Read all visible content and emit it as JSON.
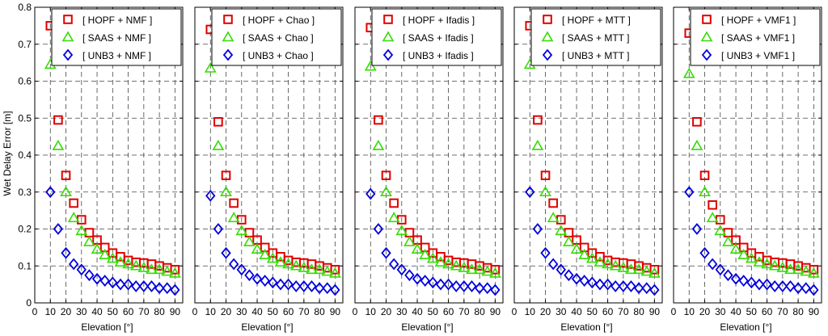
{
  "figure": {
    "ylabel": "Wet Delay Error [m]",
    "xlabel": "Elevation [°]"
  },
  "colors": {
    "hopf": "#e00000",
    "saas": "#33dd00",
    "unb3": "#0000dd",
    "grid": "#444444"
  },
  "chart_data": [
    {
      "type": "scatter",
      "xlabel": "Elevation [°]",
      "ylabel": "Wet Delay Error [m]",
      "xlim": [
        0,
        95
      ],
      "ylim": [
        0,
        0.8
      ],
      "xticks": [
        "0",
        "10",
        "20",
        "30",
        "40",
        "50",
        "60",
        "70",
        "80",
        "90"
      ],
      "yticks": [
        "0",
        "0.1",
        "0.2",
        "0.3",
        "0.4",
        "0.5",
        "0.6",
        "0.7",
        "0.8"
      ],
      "grid": true,
      "legend_position": "top-right",
      "series": [
        {
          "name": "[ HOPF + NMF ]",
          "marker": "square",
          "x": [
            10,
            15,
            20,
            25,
            30,
            35,
            40,
            45,
            50,
            55,
            60,
            65,
            70,
            75,
            80,
            85,
            90
          ],
          "y": [
            0.75,
            0.495,
            0.345,
            0.27,
            0.225,
            0.19,
            0.17,
            0.15,
            0.135,
            0.125,
            0.115,
            0.11,
            0.108,
            0.105,
            0.1,
            0.095,
            0.09
          ]
        },
        {
          "name": "[ SAAS + NMF ]",
          "marker": "triangle",
          "x": [
            10,
            15,
            20,
            25,
            30,
            35,
            40,
            45,
            50,
            55,
            60,
            65,
            70,
            75,
            80,
            85,
            90
          ],
          "y": [
            0.645,
            0.425,
            0.3,
            0.23,
            0.195,
            0.165,
            0.145,
            0.13,
            0.12,
            0.11,
            0.105,
            0.1,
            0.095,
            0.09,
            0.09,
            0.085,
            0.08
          ]
        },
        {
          "name": "[ UNB3 + NMF ]",
          "marker": "diamond",
          "x": [
            10,
            15,
            20,
            25,
            30,
            35,
            40,
            45,
            50,
            55,
            60,
            65,
            70,
            75,
            80,
            85,
            90
          ],
          "y": [
            0.3,
            0.2,
            0.135,
            0.105,
            0.09,
            0.075,
            0.065,
            0.06,
            0.055,
            0.05,
            0.05,
            0.045,
            0.045,
            0.045,
            0.04,
            0.04,
            0.035
          ]
        }
      ]
    },
    {
      "type": "scatter",
      "xlabel": "Elevation [°]",
      "xlim": [
        0,
        95
      ],
      "ylim": [
        0,
        0.8
      ],
      "xticks": [
        "0",
        "10",
        "20",
        "30",
        "40",
        "50",
        "60",
        "70",
        "80",
        "90"
      ],
      "grid": true,
      "legend_position": "top-right",
      "series": [
        {
          "name": "[ HOPF + Chao ]",
          "marker": "square",
          "x": [
            10,
            15,
            20,
            25,
            30,
            35,
            40,
            45,
            50,
            55,
            60,
            65,
            70,
            75,
            80,
            85,
            90
          ],
          "y": [
            0.74,
            0.49,
            0.345,
            0.27,
            0.225,
            0.19,
            0.17,
            0.15,
            0.135,
            0.125,
            0.115,
            0.11,
            0.108,
            0.105,
            0.1,
            0.095,
            0.09
          ]
        },
        {
          "name": "[ SAAS + Chao ]",
          "marker": "triangle",
          "x": [
            10,
            15,
            20,
            25,
            30,
            35,
            40,
            45,
            50,
            55,
            60,
            65,
            70,
            75,
            80,
            85,
            90
          ],
          "y": [
            0.635,
            0.425,
            0.3,
            0.23,
            0.195,
            0.165,
            0.145,
            0.13,
            0.12,
            0.11,
            0.105,
            0.1,
            0.095,
            0.09,
            0.09,
            0.085,
            0.08
          ]
        },
        {
          "name": "[ UNB3 + Chao ]",
          "marker": "diamond",
          "x": [
            10,
            15,
            20,
            25,
            30,
            35,
            40,
            45,
            50,
            55,
            60,
            65,
            70,
            75,
            80,
            85,
            90
          ],
          "y": [
            0.29,
            0.2,
            0.135,
            0.105,
            0.09,
            0.075,
            0.065,
            0.06,
            0.055,
            0.05,
            0.05,
            0.045,
            0.045,
            0.045,
            0.04,
            0.04,
            0.035
          ]
        }
      ]
    },
    {
      "type": "scatter",
      "xlabel": "Elevation [°]",
      "xlim": [
        0,
        95
      ],
      "ylim": [
        0,
        0.8
      ],
      "xticks": [
        "0",
        "10",
        "20",
        "30",
        "40",
        "50",
        "60",
        "70",
        "80",
        "90"
      ],
      "grid": true,
      "legend_position": "top-right",
      "series": [
        {
          "name": "[ HOPF + Ifadis ]",
          "marker": "square",
          "x": [
            10,
            15,
            20,
            25,
            30,
            35,
            40,
            45,
            50,
            55,
            60,
            65,
            70,
            75,
            80,
            85,
            90
          ],
          "y": [
            0.745,
            0.495,
            0.345,
            0.27,
            0.225,
            0.19,
            0.17,
            0.15,
            0.135,
            0.125,
            0.115,
            0.11,
            0.108,
            0.105,
            0.1,
            0.095,
            0.09
          ]
        },
        {
          "name": "[ SAAS + Ifadis ]",
          "marker": "triangle",
          "x": [
            10,
            15,
            20,
            25,
            30,
            35,
            40,
            45,
            50,
            55,
            60,
            65,
            70,
            75,
            80,
            85,
            90
          ],
          "y": [
            0.64,
            0.425,
            0.3,
            0.23,
            0.195,
            0.165,
            0.145,
            0.13,
            0.12,
            0.11,
            0.105,
            0.1,
            0.095,
            0.09,
            0.09,
            0.085,
            0.08
          ]
        },
        {
          "name": "[ UNB3 + Ifadis ]",
          "marker": "diamond",
          "x": [
            10,
            15,
            20,
            25,
            30,
            35,
            40,
            45,
            50,
            55,
            60,
            65,
            70,
            75,
            80,
            85,
            90
          ],
          "y": [
            0.295,
            0.2,
            0.135,
            0.105,
            0.09,
            0.075,
            0.065,
            0.06,
            0.055,
            0.05,
            0.05,
            0.045,
            0.045,
            0.045,
            0.04,
            0.04,
            0.035
          ]
        }
      ]
    },
    {
      "type": "scatter",
      "xlabel": "Elevation [°]",
      "xlim": [
        0,
        95
      ],
      "ylim": [
        0,
        0.8
      ],
      "xticks": [
        "0",
        "10",
        "20",
        "30",
        "40",
        "50",
        "60",
        "70",
        "80",
        "90"
      ],
      "grid": true,
      "legend_position": "top-right",
      "series": [
        {
          "name": "[ HOPF + MTT ]",
          "marker": "square",
          "x": [
            10,
            15,
            20,
            25,
            30,
            35,
            40,
            45,
            50,
            55,
            60,
            65,
            70,
            75,
            80,
            85,
            90
          ],
          "y": [
            0.75,
            0.495,
            0.345,
            0.27,
            0.225,
            0.19,
            0.17,
            0.15,
            0.135,
            0.125,
            0.115,
            0.11,
            0.108,
            0.105,
            0.1,
            0.095,
            0.09
          ]
        },
        {
          "name": "[ SAAS + MTT ]",
          "marker": "triangle",
          "x": [
            10,
            15,
            20,
            25,
            30,
            35,
            40,
            45,
            50,
            55,
            60,
            65,
            70,
            75,
            80,
            85,
            90
          ],
          "y": [
            0.645,
            0.425,
            0.3,
            0.23,
            0.195,
            0.165,
            0.145,
            0.13,
            0.12,
            0.11,
            0.105,
            0.1,
            0.095,
            0.09,
            0.09,
            0.085,
            0.08
          ]
        },
        {
          "name": "[ UNB3 + MTT ]",
          "marker": "diamond",
          "x": [
            10,
            15,
            20,
            25,
            30,
            35,
            40,
            45,
            50,
            55,
            60,
            65,
            70,
            75,
            80,
            85,
            90
          ],
          "y": [
            0.3,
            0.2,
            0.135,
            0.105,
            0.09,
            0.075,
            0.065,
            0.06,
            0.055,
            0.05,
            0.05,
            0.045,
            0.045,
            0.045,
            0.04,
            0.04,
            0.035
          ]
        }
      ]
    },
    {
      "type": "scatter",
      "xlabel": "Elevation [°]",
      "xlim": [
        0,
        95
      ],
      "ylim": [
        0,
        0.8
      ],
      "xticks": [
        "0",
        "10",
        "20",
        "30",
        "40",
        "50",
        "60",
        "70",
        "80",
        "90"
      ],
      "grid": true,
      "legend_position": "top-right",
      "series": [
        {
          "name": "[ HOPF + VMF1 ]",
          "marker": "square",
          "x": [
            10,
            15,
            20,
            25,
            30,
            35,
            40,
            45,
            50,
            55,
            60,
            65,
            70,
            75,
            80,
            85,
            90
          ],
          "y": [
            0.73,
            0.49,
            0.345,
            0.265,
            0.225,
            0.19,
            0.17,
            0.15,
            0.135,
            0.125,
            0.115,
            0.11,
            0.108,
            0.105,
            0.1,
            0.095,
            0.09
          ]
        },
        {
          "name": "[ SAAS + VMF1 ]",
          "marker": "triangle",
          "x": [
            10,
            15,
            20,
            25,
            30,
            35,
            40,
            45,
            50,
            55,
            60,
            65,
            70,
            75,
            80,
            85,
            90
          ],
          "y": [
            0.62,
            0.425,
            0.3,
            0.23,
            0.195,
            0.165,
            0.145,
            0.13,
            0.12,
            0.11,
            0.105,
            0.1,
            0.095,
            0.09,
            0.09,
            0.085,
            0.08
          ]
        },
        {
          "name": "[ UNB3 + VMF1 ]",
          "marker": "diamond",
          "x": [
            10,
            15,
            20,
            25,
            30,
            35,
            40,
            45,
            50,
            55,
            60,
            65,
            70,
            75,
            80,
            85,
            90
          ],
          "y": [
            0.3,
            0.2,
            0.135,
            0.105,
            0.09,
            0.075,
            0.065,
            0.06,
            0.055,
            0.05,
            0.05,
            0.045,
            0.045,
            0.045,
            0.04,
            0.04,
            0.035
          ]
        }
      ]
    }
  ]
}
